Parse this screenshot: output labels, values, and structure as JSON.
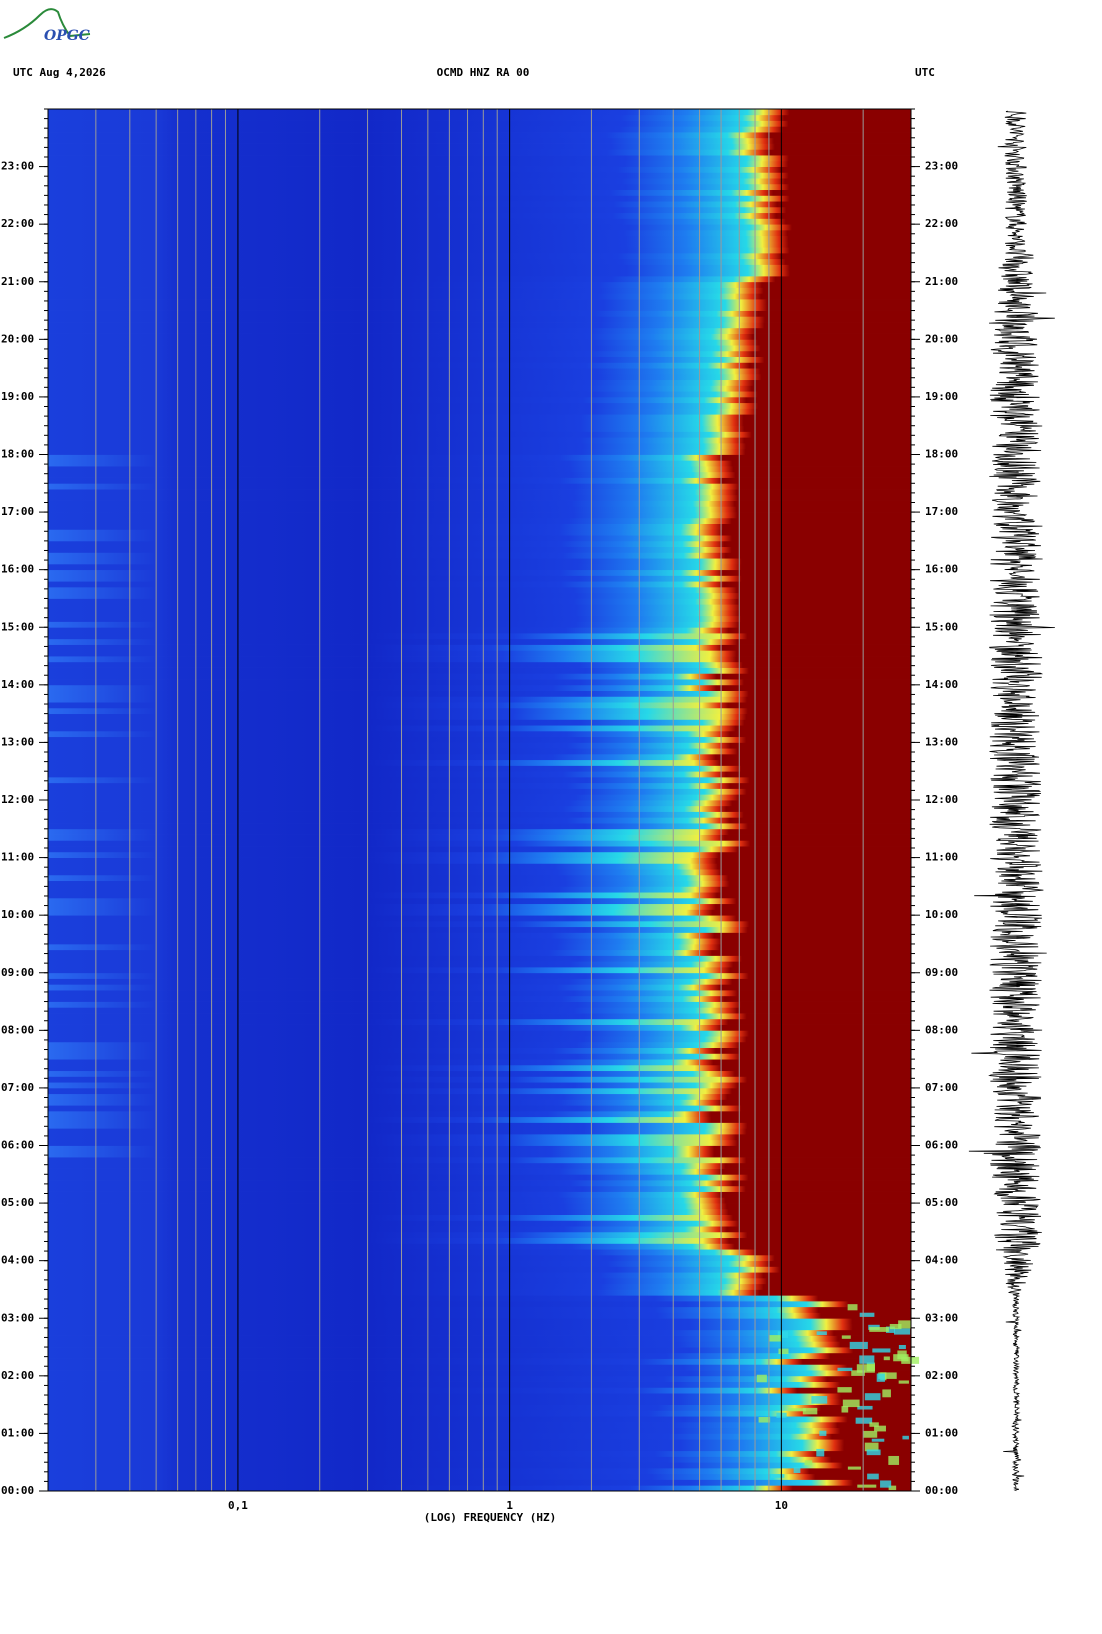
{
  "logo": "OPGC",
  "chart_data": {
    "type": "spectrogram",
    "title": "OCMD HNZ RA 00",
    "header_left": "UTC  Aug 4,2026",
    "header_right": "UTC",
    "x_label": "(LOG) FREQUENCY (HZ)",
    "x_scale": "log",
    "xlim": [
      0.02,
      30
    ],
    "xticks": [
      {
        "value": 0.1,
        "label": "0,1"
      },
      1,
      10
    ],
    "x_minor_grid": true,
    "ylim": [
      0,
      24
    ],
    "yticks": [
      {
        "value": 0,
        "label": "00:00"
      },
      {
        "value": 1,
        "label": "01:00"
      },
      {
        "value": 2,
        "label": "02:00"
      },
      {
        "value": 3,
        "label": "03:00"
      },
      {
        "value": 4,
        "label": "04:00"
      },
      {
        "value": 5,
        "label": "05:00"
      },
      {
        "value": 6,
        "label": "06:00"
      },
      {
        "value": 7,
        "label": "07:00"
      },
      {
        "value": 8,
        "label": "08:00"
      },
      {
        "value": 9,
        "label": "09:00"
      },
      {
        "value": 10,
        "label": "10:00"
      },
      {
        "value": 11,
        "label": "11:00"
      },
      {
        "value": 12,
        "label": "12:00"
      },
      {
        "value": 13,
        "label": "13:00"
      },
      {
        "value": 14,
        "label": "14:00"
      },
      {
        "value": 15,
        "label": "15:00"
      },
      {
        "value": 16,
        "label": "16:00"
      },
      {
        "value": 17,
        "label": "17:00"
      },
      {
        "value": 18,
        "label": "18:00"
      },
      {
        "value": 19,
        "label": "19:00"
      },
      {
        "value": 20,
        "label": "20:00"
      },
      {
        "value": 21,
        "label": "21:00"
      },
      {
        "value": 22,
        "label": "22:00"
      },
      {
        "value": 23,
        "label": "23:00"
      }
    ]
  }
}
